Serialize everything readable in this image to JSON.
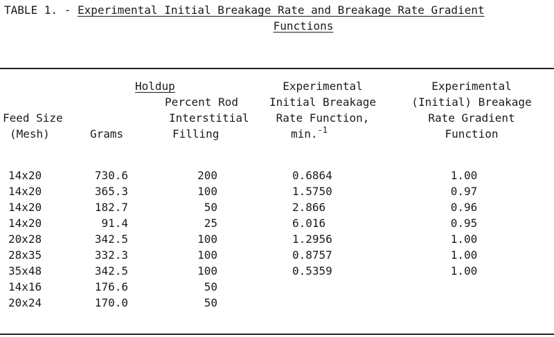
{
  "title": {
    "prefix": "TABLE 1. - ",
    "line1": "Experimental Initial Breakage Rate and Breakage Rate Gradient",
    "line2": "Functions"
  },
  "header": {
    "group": "Holdup",
    "feed_size": [
      "Feed Size",
      "(Mesh)"
    ],
    "grams": "Grams",
    "percent_rod": [
      "Percent Rod",
      "Interstitial",
      "Filling"
    ],
    "initial_rate": [
      "Experimental",
      "Initial Breakage",
      "Rate Function,",
      "min."
    ],
    "initial_rate_unit_sup": "-1",
    "gradient": [
      "Experimental",
      "(Initial) Breakage",
      "Rate Gradient",
      "Function"
    ]
  },
  "rows": [
    {
      "feed": "14x20",
      "grams": "730.6",
      "pct": "200",
      "rate": "0.6864",
      "grad": "1.00"
    },
    {
      "feed": "14x20",
      "grams": "365.3",
      "pct": "100",
      "rate": "1.5750",
      "grad": "0.97"
    },
    {
      "feed": "14x20",
      "grams": "182.7",
      "pct": "50",
      "rate": "2.866",
      "grad": "0.96"
    },
    {
      "feed": "14x20",
      "grams": "91.4",
      "pct": "25",
      "rate": "6.016",
      "grad": "0.95"
    },
    {
      "feed": "20x28",
      "grams": "342.5",
      "pct": "100",
      "rate": "1.2956",
      "grad": "1.00"
    },
    {
      "feed": "28x35",
      "grams": "332.3",
      "pct": "100",
      "rate": "0.8757",
      "grad": "1.00"
    },
    {
      "feed": "35x48",
      "grams": "342.5",
      "pct": "100",
      "rate": "0.5359",
      "grad": "1.00"
    },
    {
      "feed": "14x16",
      "grams": "176.6",
      "pct": "50",
      "rate": "",
      "grad": ""
    },
    {
      "feed": "20x24",
      "grams": "170.0",
      "pct": "50",
      "rate": "",
      "grad": ""
    }
  ]
}
